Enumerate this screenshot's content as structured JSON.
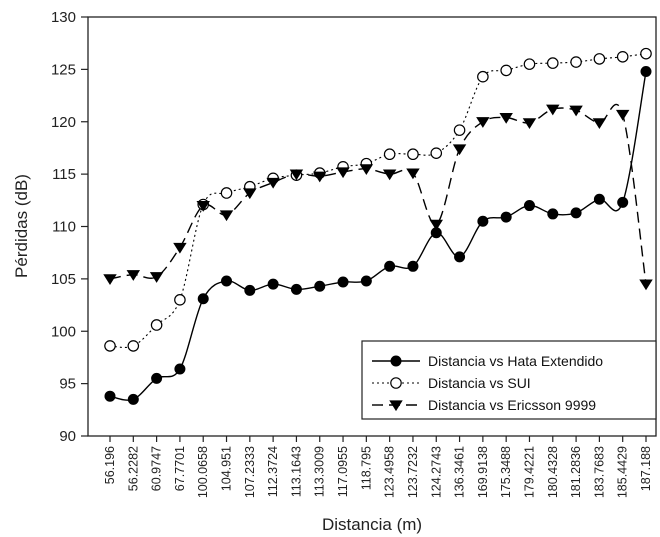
{
  "chart_data": {
    "type": "line",
    "title": "",
    "xlabel": "Distancia (m)",
    "ylabel": "Pérdidas (dB)",
    "ylim": [
      90,
      130
    ],
    "yticks": [
      90,
      95,
      100,
      105,
      110,
      115,
      120,
      125,
      130
    ],
    "grid": false,
    "legend_position": "bottom-right",
    "categories": [
      "56.196",
      "56.2282",
      "60.9747",
      "67.7701",
      "100.0658",
      "104.951",
      "107.2333",
      "112.3724",
      "113.1643",
      "113.3009",
      "117.0955",
      "118.795",
      "123.4958",
      "123.7232",
      "124.2743",
      "136.3461",
      "169.9138",
      "175.3488",
      "179.4221",
      "180.4328",
      "181.2836",
      "183.7683",
      "185.4429",
      "187.188"
    ],
    "series": [
      {
        "name": "Distancia vs Hata Extendido",
        "marker": "filled-circle",
        "line": "solid",
        "values": [
          93.8,
          93.5,
          95.5,
          96.4,
          103.1,
          104.8,
          103.9,
          104.5,
          104.0,
          104.3,
          104.7,
          104.8,
          106.2,
          106.2,
          109.4,
          107.1,
          110.5,
          110.9,
          112.0,
          111.2,
          111.3,
          112.6,
          112.3,
          124.8
        ]
      },
      {
        "name": "Distancia vs SUI",
        "marker": "open-circle",
        "line": "dotted",
        "values": [
          98.6,
          98.6,
          100.6,
          103.0,
          112.1,
          113.2,
          113.8,
          114.6,
          114.9,
          115.1,
          115.7,
          116.0,
          116.9,
          116.9,
          117.0,
          119.2,
          124.3,
          124.9,
          125.5,
          125.6,
          125.7,
          126.0,
          126.2,
          126.5
        ]
      },
      {
        "name": "Distancia vs Ericsson 9999",
        "marker": "filled-triangle-down",
        "line": "dashed",
        "values": [
          105.0,
          105.4,
          105.2,
          108.0,
          112.0,
          111.1,
          113.2,
          114.2,
          115.0,
          114.8,
          115.2,
          115.5,
          115.0,
          115.1,
          110.2,
          117.4,
          120.0,
          120.4,
          119.9,
          121.2,
          121.1,
          119.9,
          120.7,
          104.5
        ]
      }
    ]
  }
}
